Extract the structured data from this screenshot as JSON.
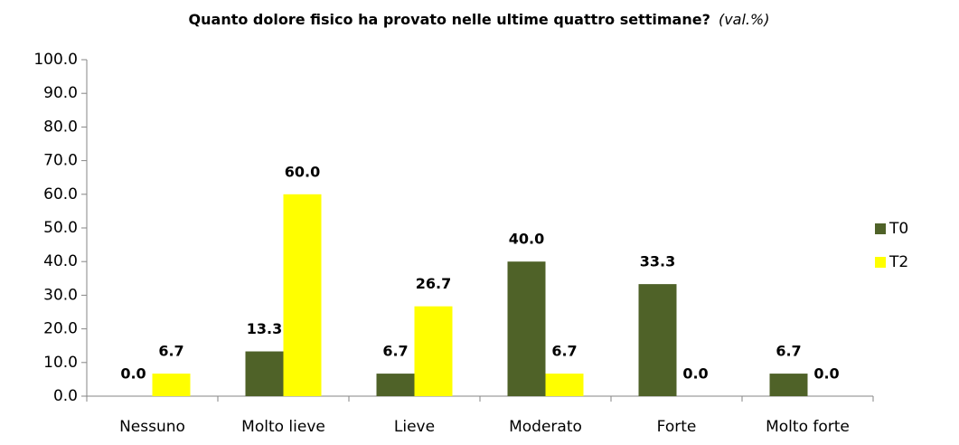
{
  "chart_data": {
    "type": "bar",
    "title": "Quanto dolore fisico ha provato nelle ultime quattro settimane?",
    "title_note": "(val.%)",
    "categories": [
      "Nessuno",
      "Molto lieve",
      "Lieve",
      "Moderato",
      "Forte",
      "Molto forte"
    ],
    "series": [
      {
        "name": "T0",
        "color": "#4f6228",
        "values": [
          0,
          13.3,
          6.7,
          40,
          33.3,
          6.7
        ],
        "value_labels": [
          "0.0",
          "13.3",
          "6.7",
          "40.0",
          "33.3",
          "6.7"
        ]
      },
      {
        "name": "T2",
        "color": "#ffff00",
        "values": [
          6.7,
          60,
          26.7,
          6.7,
          0,
          0
        ],
        "value_labels": [
          "6.7",
          "60.0",
          "26.7",
          "6.7",
          "0.0",
          "0.0"
        ]
      }
    ],
    "ylim": [
      0,
      100
    ],
    "yticks": [
      {
        "value": 0,
        "label": "0.0"
      },
      {
        "value": 10,
        "label": "10.0"
      },
      {
        "value": 20,
        "label": "20.0"
      },
      {
        "value": 30,
        "label": "30.0"
      },
      {
        "value": 40,
        "label": "40.0"
      },
      {
        "value": 50,
        "label": "50.0"
      },
      {
        "value": 60,
        "label": "60.0"
      },
      {
        "value": 70,
        "label": "70.0"
      },
      {
        "value": 80,
        "label": "80.0"
      },
      {
        "value": 90,
        "label": "90.0"
      },
      {
        "value": 100,
        "label": "100.0"
      }
    ],
    "legend": "right"
  }
}
